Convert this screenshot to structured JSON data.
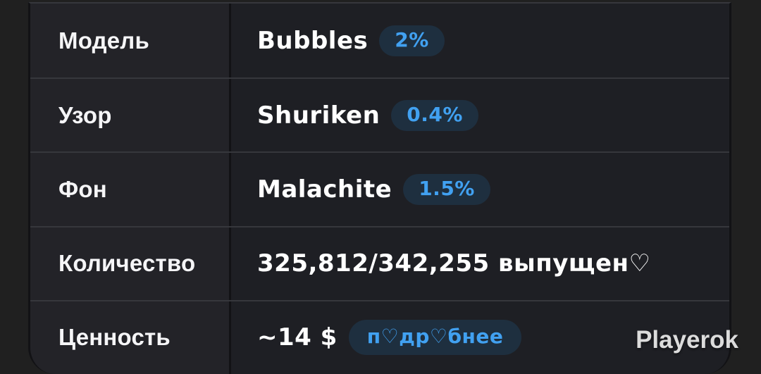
{
  "page": {
    "watermark": "Playerok"
  },
  "table": {
    "rows": [
      {
        "label": "Модель",
        "value": "Bubbles",
        "badge": "2%"
      },
      {
        "label": "Узор",
        "value": "Shuriken",
        "badge": "0.4%"
      },
      {
        "label": "Фон",
        "value": "Malachite",
        "badge": "1.5%"
      },
      {
        "label": "Количество",
        "value": "325,812/342,255 выпущен♡",
        "badge": null
      },
      {
        "label": "Ценность",
        "value": "~14 $",
        "badge": "п♡др♡бнее"
      }
    ]
  },
  "colors": {
    "page_bg": "#202020",
    "label_cell_bg": "#232328",
    "value_cell_bg": "#1e1f24",
    "row_border": "#36373c",
    "divider": "#121215",
    "badge_bg": "#1e2f3f",
    "badge_text": "#41a1f1",
    "value_text": "#ffffff",
    "watermark_text": "#dcdcdc"
  }
}
